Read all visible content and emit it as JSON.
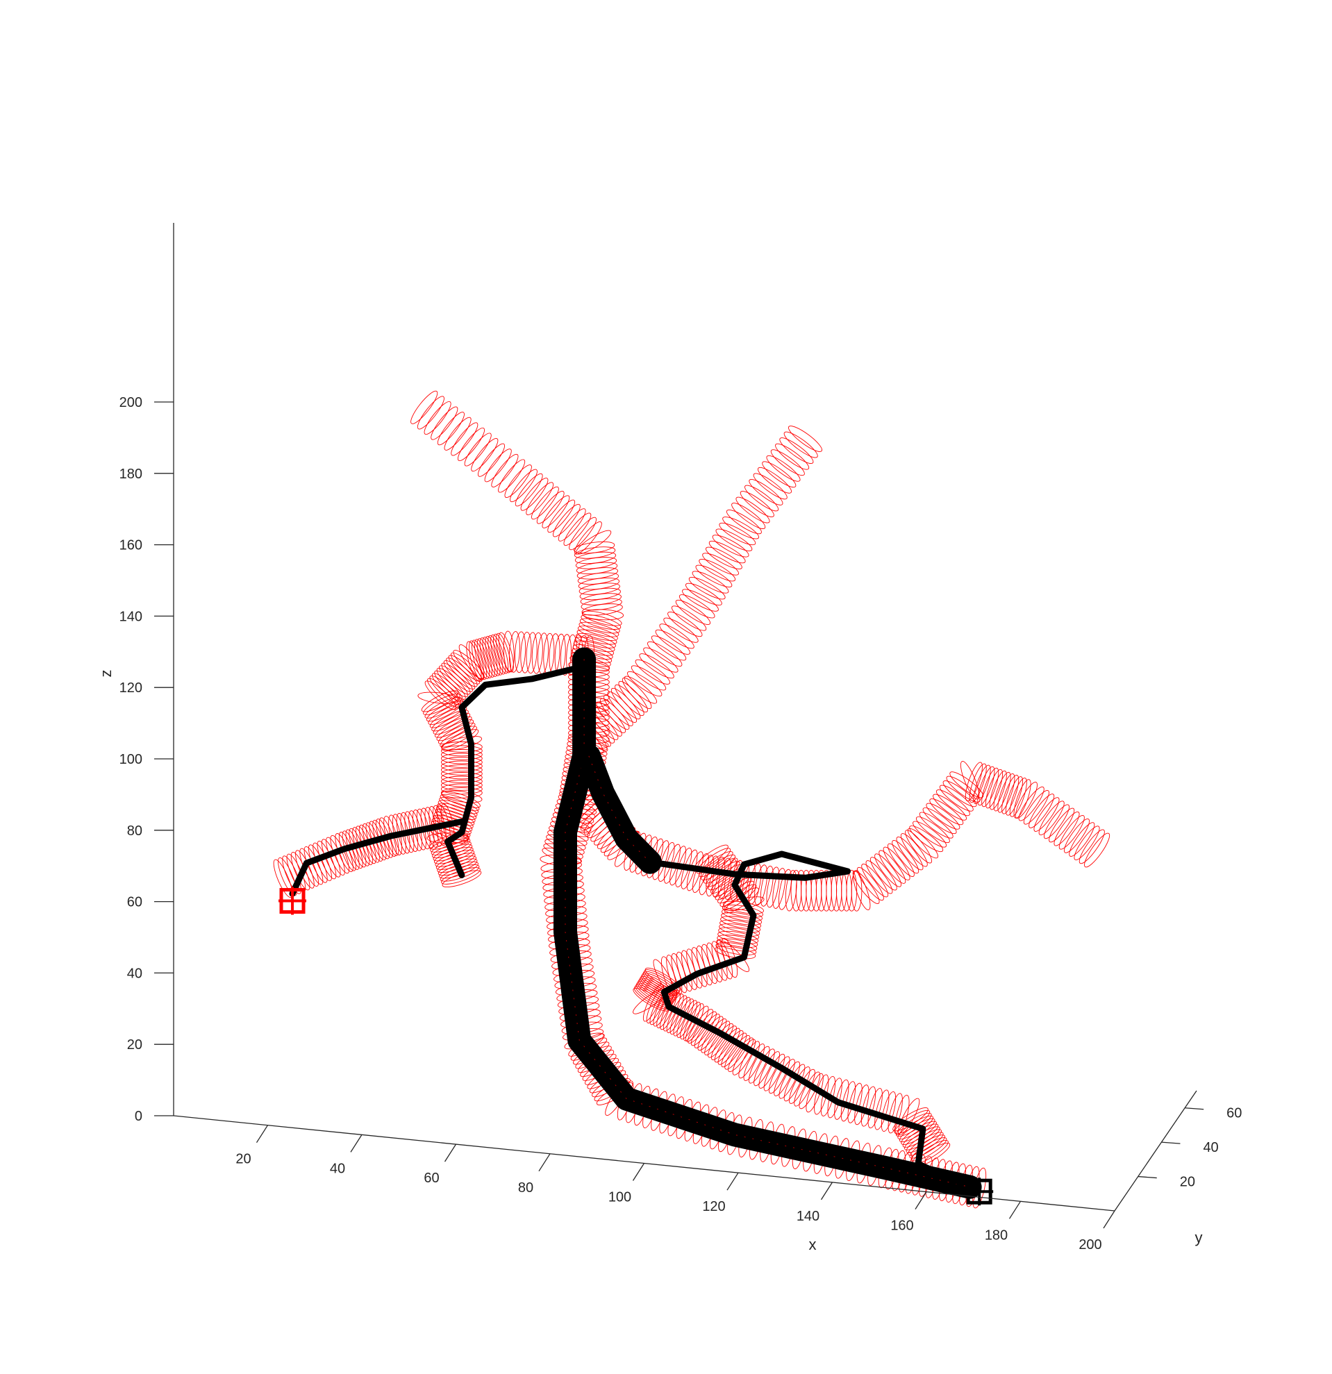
{
  "chart_data": {
    "type": "line",
    "projection": "3d",
    "title": "",
    "xlabel": "x",
    "ylabel": "y",
    "zlabel": "z",
    "xlim": [
      0,
      200
    ],
    "ylim": [
      0,
      70
    ],
    "zlim": [
      0,
      200
    ],
    "x_ticks": [
      20,
      40,
      60,
      80,
      100,
      120,
      140,
      160,
      180,
      200
    ],
    "y_ticks": [
      20,
      40,
      60
    ],
    "z_ticks": [
      0,
      20,
      40,
      60,
      80,
      100,
      120,
      140,
      160,
      180,
      200
    ],
    "grid": false,
    "legend": "none",
    "colors": {
      "mesh": "#ff0000",
      "path": "#000000",
      "axes": "#262626"
    },
    "series": [
      {
        "type": "tube",
        "color": "#ff0000",
        "points": [
          [
            170,
            5,
            0
          ],
          [
            150,
            5,
            3
          ],
          [
            118,
            5,
            8
          ],
          [
            93,
            5,
            15
          ],
          [
            86,
            5,
            30
          ],
          [
            83,
            5,
            55
          ],
          [
            81,
            5,
            80
          ],
          [
            85,
            5,
            98
          ],
          [
            87,
            5,
            115
          ],
          [
            87,
            5,
            135
          ],
          [
            90,
            5,
            150
          ],
          [
            88,
            5,
            170
          ],
          [
            72,
            5,
            185
          ],
          [
            52,
            5,
            203
          ]
        ]
      },
      {
        "type": "tube",
        "color": "#ff0000",
        "points": [
          [
            87,
            5,
            115
          ],
          [
            98,
            5,
            130
          ],
          [
            110,
            5,
            155
          ],
          [
            120,
            5,
            180
          ],
          [
            133,
            5,
            205
          ]
        ]
      },
      {
        "type": "tube",
        "color": "#ff0000",
        "points": [
          [
            85,
            5,
            98
          ],
          [
            95,
            5,
            85
          ],
          [
            112,
            5,
            80
          ],
          [
            130,
            5,
            78
          ],
          [
            145,
            5,
            80
          ],
          [
            158,
            5,
            95
          ],
          [
            168,
            5,
            114
          ],
          [
            180,
            5,
            110
          ],
          [
            195,
            5,
            98
          ]
        ]
      },
      {
        "type": "tube",
        "color": "#ff0000",
        "points": [
          [
            87,
            5,
            138
          ],
          [
            70,
            5,
            137
          ],
          [
            62,
            5,
            133
          ],
          [
            55,
            5,
            122
          ],
          [
            60,
            5,
            110
          ],
          [
            60,
            5,
            95
          ],
          [
            57,
            5,
            83
          ],
          [
            60,
            5,
            72
          ]
        ]
      },
      {
        "type": "tube",
        "color": "#ff0000",
        "points": [
          [
            57,
            5,
            87
          ],
          [
            45,
            5,
            82
          ],
          [
            35,
            5,
            76
          ],
          [
            22,
            5,
            67
          ]
        ]
      },
      {
        "type": "tube",
        "color": "#ff0000",
        "points": [
          [
            113,
            5,
            85
          ],
          [
            120,
            5,
            73
          ],
          [
            118,
            5,
            58
          ],
          [
            103,
            5,
            50
          ],
          [
            100,
            5,
            43
          ],
          [
            110,
            5,
            38
          ],
          [
            120,
            5,
            30
          ],
          [
            135,
            5,
            22
          ],
          [
            155,
            5,
            18
          ],
          [
            160,
            5,
            8
          ]
        ]
      },
      {
        "type": "path",
        "color": "#000000",
        "width": "thick",
        "points": [
          [
            86,
            5,
            137
          ],
          [
            86,
            5,
            110
          ],
          [
            82,
            5,
            88
          ],
          [
            82,
            5,
            60
          ],
          [
            85,
            5,
            30
          ],
          [
            95,
            5,
            15
          ],
          [
            118,
            5,
            8
          ],
          [
            150,
            5,
            3
          ],
          [
            168,
            5,
            0
          ]
        ]
      },
      {
        "type": "path",
        "color": "#000000",
        "width": "thick",
        "points": [
          [
            87,
            5,
            110
          ],
          [
            90,
            5,
            100
          ],
          [
            95,
            5,
            88
          ],
          [
            100,
            5,
            82
          ]
        ]
      },
      {
        "type": "path",
        "color": "#000000",
        "width": "thin",
        "points": [
          [
            86,
            5,
            135
          ],
          [
            75,
            5,
            130
          ],
          [
            65,
            5,
            127
          ],
          [
            60,
            5,
            120
          ],
          [
            62,
            5,
            110
          ],
          [
            62,
            5,
            95
          ],
          [
            60,
            5,
            85
          ],
          [
            57,
            5,
            82
          ],
          [
            60,
            5,
            73
          ]
        ]
      },
      {
        "type": "path",
        "color": "#000000",
        "width": "thin",
        "points": [
          [
            60,
            5,
            88
          ],
          [
            45,
            5,
            82
          ],
          [
            35,
            5,
            77
          ],
          [
            27,
            5,
            72
          ],
          [
            24,
            5,
            63
          ]
        ]
      },
      {
        "type": "path",
        "color": "#000000",
        "width": "thin",
        "points": [
          [
            100,
            5,
            82
          ],
          [
            118,
            5,
            81
          ],
          [
            133,
            5,
            82
          ],
          [
            142,
            5,
            85
          ],
          [
            128,
            5,
            88
          ],
          [
            120,
            5,
            84
          ],
          [
            118,
            5,
            78
          ],
          [
            122,
            5,
            70
          ],
          [
            120,
            5,
            58
          ],
          [
            110,
            5,
            52
          ],
          [
            103,
            5,
            46
          ],
          [
            104,
            5,
            42
          ],
          [
            115,
            5,
            36
          ],
          [
            128,
            5,
            28
          ],
          [
            140,
            5,
            20
          ],
          [
            158,
            5,
            15
          ],
          [
            157,
            5,
            5
          ],
          [
            166,
            5,
            1
          ]
        ]
      },
      {
        "type": "marker",
        "symbol": "square-cross",
        "color": "#ff0000",
        "point": [
          24,
          5,
          61
        ]
      },
      {
        "type": "marker",
        "symbol": "square-cross",
        "color": "#000000",
        "point": [
          170,
          5,
          -1
        ]
      }
    ]
  }
}
